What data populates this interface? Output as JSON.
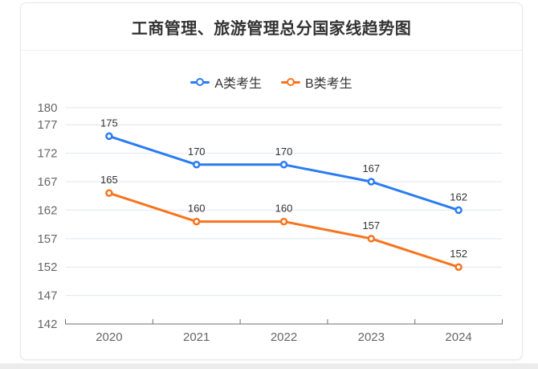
{
  "title": "工商管理、旅游管理总分国家线趋势图",
  "chart_data": {
    "type": "line",
    "categories": [
      "2020",
      "2021",
      "2022",
      "2023",
      "2024"
    ],
    "series": [
      {
        "name": "A类考生",
        "color": "#2b7cf0",
        "values": [
          175,
          170,
          170,
          167,
          162
        ]
      },
      {
        "name": "B类考生",
        "color": "#f7741f",
        "values": [
          165,
          160,
          160,
          157,
          152
        ]
      }
    ],
    "title": "工商管理、旅游管理总分国家线趋势图",
    "xlabel": "",
    "ylabel": "",
    "ylim": [
      142,
      180
    ],
    "y_ticks": [
      142,
      147,
      152,
      157,
      162,
      167,
      172,
      177,
      180
    ],
    "grid": true,
    "legend_position": "top",
    "colors": {
      "grid_line": "#e0e6f1",
      "axis_line": "#6e7079",
      "axis_label": "#666666",
      "data_label": "#333333"
    }
  }
}
